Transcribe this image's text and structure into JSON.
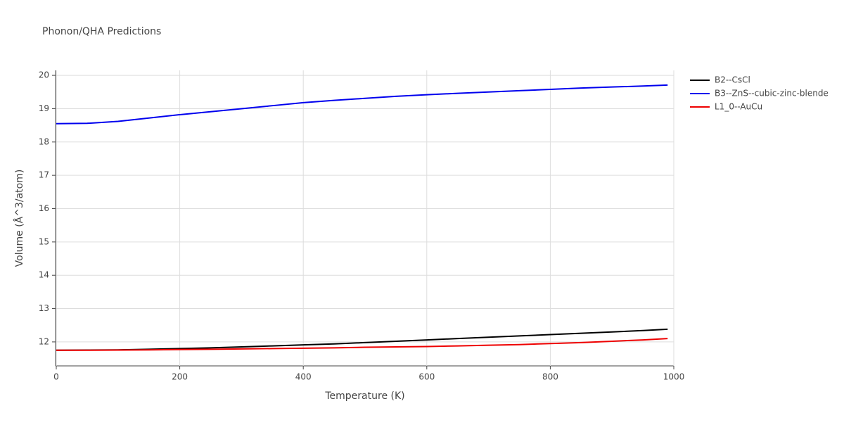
{
  "chart_data": {
    "type": "line",
    "title": "Phonon/QHA Predictions",
    "x_label": "Temperature (K)",
    "y_label": "Volume (Å^3/atom)",
    "x": [
      0,
      50,
      100,
      150,
      200,
      250,
      300,
      350,
      400,
      450,
      500,
      550,
      600,
      650,
      700,
      750,
      800,
      850,
      900,
      950,
      990
    ],
    "series": [
      {
        "name": "B2--CsCl",
        "color": "#000000",
        "values": [
          11.75,
          11.755,
          11.76,
          11.78,
          11.8,
          11.82,
          11.85,
          11.88,
          11.91,
          11.94,
          11.98,
          12.02,
          12.06,
          12.1,
          12.14,
          12.18,
          12.22,
          12.26,
          12.3,
          12.34,
          12.38
        ]
      },
      {
        "name": "B3--ZnS--cubic-zinc-blende",
        "color": "#0000ee",
        "values": [
          18.55,
          18.56,
          18.62,
          18.72,
          18.82,
          18.91,
          19.0,
          19.09,
          19.18,
          19.25,
          19.31,
          19.37,
          19.42,
          19.46,
          19.5,
          19.54,
          19.58,
          19.62,
          19.65,
          19.68,
          19.71
        ]
      },
      {
        "name": "L1_0--AuCu",
        "color": "#ee0000",
        "values": [
          11.75,
          11.75,
          11.755,
          11.76,
          11.77,
          11.78,
          11.79,
          11.8,
          11.81,
          11.82,
          11.84,
          11.85,
          11.86,
          11.88,
          11.9,
          11.92,
          11.95,
          11.98,
          12.02,
          12.06,
          12.1
        ]
      }
    ],
    "xlim": [
      0,
      1000
    ],
    "xticks": [
      0,
      200,
      400,
      600,
      800,
      1000
    ],
    "ylim": [
      11.28,
      20.15
    ],
    "yticks": [
      12,
      13,
      14,
      15,
      16,
      17,
      18,
      19,
      20
    ],
    "grid": true,
    "legend": "right"
  }
}
